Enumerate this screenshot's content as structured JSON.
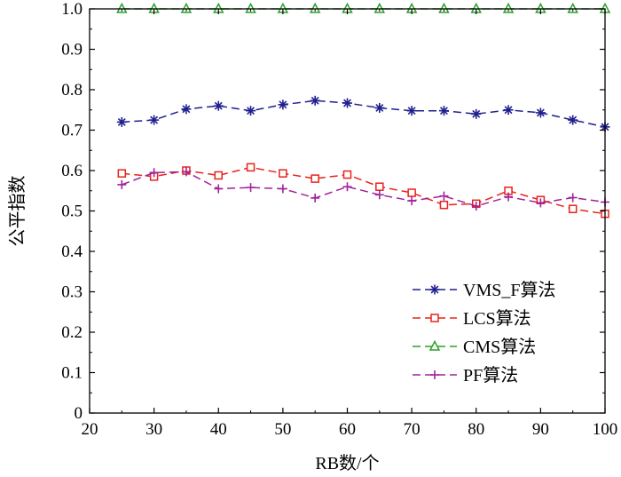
{
  "chart_data": {
    "type": "line",
    "xlabel": "RB数/个",
    "ylabel": "公平指数",
    "xlim": [
      20,
      100
    ],
    "ylim": [
      0,
      1.0
    ],
    "xticks": [
      "20",
      "30",
      "40",
      "50",
      "60",
      "70",
      "80",
      "90",
      "100"
    ],
    "yticks": [
      "0",
      "0.1",
      "0.2",
      "0.3",
      "0.4",
      "0.5",
      "0.6",
      "0.7",
      "0.8",
      "0.9",
      "1.0"
    ],
    "grid": false,
    "legend_position": "bottom-right",
    "x": [
      25,
      30,
      35,
      40,
      45,
      50,
      55,
      60,
      65,
      70,
      75,
      80,
      85,
      90,
      95,
      100
    ],
    "series": [
      {
        "name": "VMS_F算法",
        "color": "#1f1f8f",
        "marker": "star",
        "values": [
          0.72,
          0.725,
          0.752,
          0.76,
          0.748,
          0.763,
          0.773,
          0.767,
          0.755,
          0.748,
          0.748,
          0.74,
          0.75,
          0.743,
          0.725,
          0.708
        ]
      },
      {
        "name": "LCS算法",
        "color": "#e8231c",
        "marker": "square",
        "values": [
          0.593,
          0.585,
          0.6,
          0.588,
          0.608,
          0.593,
          0.58,
          0.59,
          0.56,
          0.545,
          0.515,
          0.518,
          0.55,
          0.527,
          0.505,
          0.493
        ]
      },
      {
        "name": "CMS算法",
        "color": "#2ca02c",
        "marker": "triangle",
        "values": [
          1.0,
          1.0,
          1.0,
          1.0,
          1.0,
          1.0,
          1.0,
          1.0,
          1.0,
          1.0,
          1.0,
          1.0,
          1.0,
          1.0,
          1.0,
          1.0
        ]
      },
      {
        "name": "PF算法",
        "color": "#a0229b",
        "marker": "plus",
        "values": [
          0.565,
          0.595,
          0.597,
          0.555,
          0.558,
          0.555,
          0.532,
          0.56,
          0.54,
          0.525,
          0.537,
          0.512,
          0.535,
          0.52,
          0.533,
          0.522
        ]
      }
    ]
  }
}
